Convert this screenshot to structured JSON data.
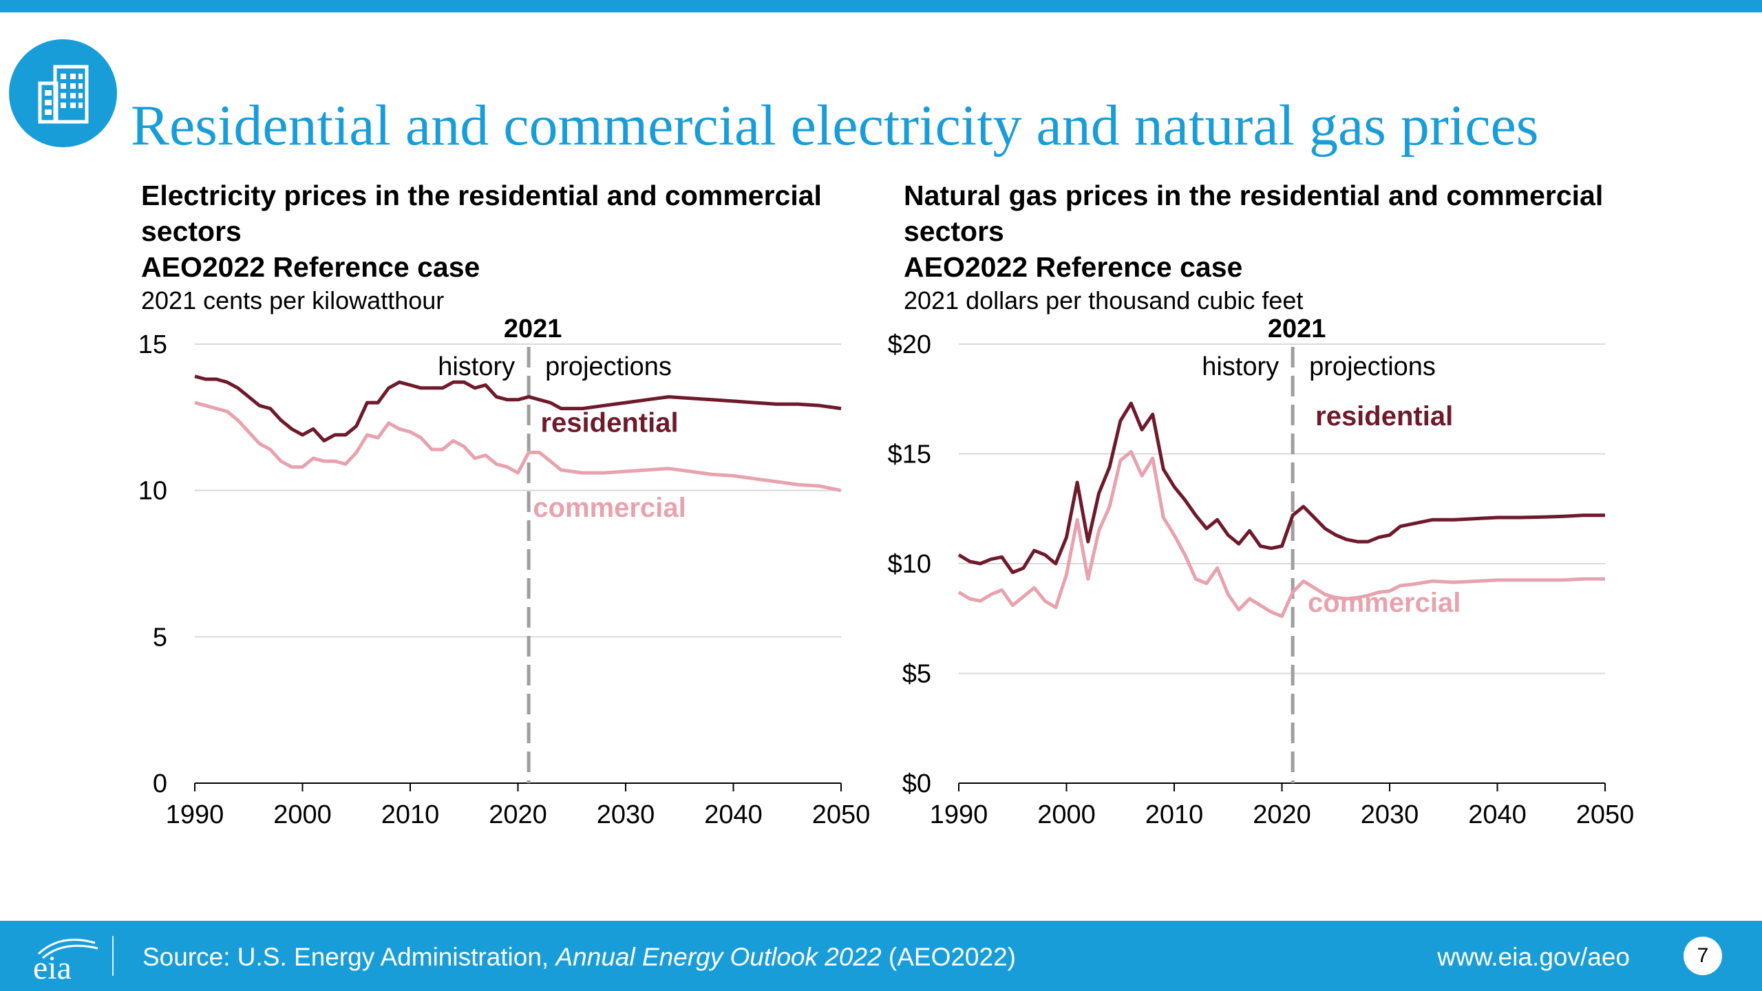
{
  "colors": {
    "accent": "#189dd9",
    "residential": "#6e1a2a",
    "commercial": "#e8a2ad",
    "divider": "#9e9e9e"
  },
  "header": {
    "icon": "office-building-icon",
    "title": "Residential and commercial electricity and natural gas prices"
  },
  "footer": {
    "logo": "eia",
    "source_prefix": "Source: U.S. Energy Administration, ",
    "source_italic": "Annual Energy Outlook 2022",
    "source_suffix": " (AEO2022)",
    "url": "www.eia.gov/aeo",
    "page_number": "7"
  },
  "chart_data": [
    {
      "type": "line",
      "title": "Electricity prices in the residential and commercial sectors",
      "subtitle": "AEO2022 Reference case",
      "ylabel": "2021 cents per kilowatthour",
      "xlim": [
        1990,
        2050
      ],
      "ylim": [
        0,
        15
      ],
      "x_ticks": [
        1990,
        2000,
        2010,
        2020,
        2030,
        2040,
        2050
      ],
      "y_ticks": [
        0,
        5,
        10,
        15
      ],
      "y_tick_labels": [
        "0",
        "5",
        "10",
        "15"
      ],
      "grid": true,
      "divider": {
        "x": 2021,
        "label": "2021",
        "left_label": "history",
        "right_label": "projections"
      },
      "series": [
        {
          "name": "residential",
          "color": "#6e1a2a",
          "x": [
            1990,
            1991,
            1992,
            1993,
            1994,
            1995,
            1996,
            1997,
            1998,
            1999,
            2000,
            2001,
            2002,
            2003,
            2004,
            2005,
            2006,
            2007,
            2008,
            2009,
            2010,
            2011,
            2012,
            2013,
            2014,
            2015,
            2016,
            2017,
            2018,
            2019,
            2020,
            2021,
            2022,
            2023,
            2024,
            2025,
            2026,
            2028,
            2030,
            2032,
            2034,
            2036,
            2038,
            2040,
            2042,
            2044,
            2046,
            2048,
            2050
          ],
          "y": [
            13.9,
            13.8,
            13.8,
            13.7,
            13.5,
            13.2,
            12.9,
            12.8,
            12.4,
            12.1,
            11.9,
            12.1,
            11.7,
            11.9,
            11.9,
            12.2,
            13.0,
            13.0,
            13.5,
            13.7,
            13.6,
            13.5,
            13.5,
            13.5,
            13.7,
            13.7,
            13.5,
            13.6,
            13.2,
            13.1,
            13.1,
            13.2,
            13.1,
            13.0,
            12.8,
            12.8,
            12.8,
            12.9,
            13.0,
            13.1,
            13.2,
            13.15,
            13.1,
            13.05,
            13.0,
            12.95,
            12.95,
            12.9,
            12.8
          ]
        },
        {
          "name": "commercial",
          "color": "#e8a2ad",
          "x": [
            1990,
            1991,
            1992,
            1993,
            1994,
            1995,
            1996,
            1997,
            1998,
            1999,
            2000,
            2001,
            2002,
            2003,
            2004,
            2005,
            2006,
            2007,
            2008,
            2009,
            2010,
            2011,
            2012,
            2013,
            2014,
            2015,
            2016,
            2017,
            2018,
            2019,
            2020,
            2021,
            2022,
            2023,
            2024,
            2025,
            2026,
            2028,
            2030,
            2032,
            2034,
            2036,
            2038,
            2040,
            2042,
            2044,
            2046,
            2048,
            2050
          ],
          "y": [
            13.0,
            12.9,
            12.8,
            12.7,
            12.4,
            12.0,
            11.6,
            11.4,
            11.0,
            10.8,
            10.8,
            11.1,
            11.0,
            11.0,
            10.9,
            11.3,
            11.9,
            11.8,
            12.3,
            12.1,
            12.0,
            11.8,
            11.4,
            11.4,
            11.7,
            11.5,
            11.1,
            11.2,
            10.9,
            10.8,
            10.6,
            11.3,
            11.3,
            11.0,
            10.7,
            10.65,
            10.6,
            10.6,
            10.65,
            10.7,
            10.75,
            10.65,
            10.55,
            10.5,
            10.4,
            10.3,
            10.2,
            10.15,
            10.0
          ]
        }
      ],
      "annotations": [
        "residential",
        "commercial"
      ]
    },
    {
      "type": "line",
      "title": "Natural gas prices in the residential and commercial sectors",
      "subtitle": "AEO2022 Reference case",
      "ylabel": "2021 dollars per thousand cubic feet",
      "xlim": [
        1990,
        2050
      ],
      "ylim": [
        0,
        20
      ],
      "x_ticks": [
        1990,
        2000,
        2010,
        2020,
        2030,
        2040,
        2050
      ],
      "y_ticks": [
        0,
        5,
        10,
        15,
        20
      ],
      "y_tick_labels": [
        "$0",
        "$5",
        "$10",
        "$15",
        "$20"
      ],
      "grid": true,
      "divider": {
        "x": 2021,
        "label": "2021",
        "left_label": "history",
        "right_label": "projections"
      },
      "series": [
        {
          "name": "residential",
          "color": "#6e1a2a",
          "x": [
            1990,
            1991,
            1992,
            1993,
            1994,
            1995,
            1996,
            1997,
            1998,
            1999,
            2000,
            2001,
            2002,
            2003,
            2004,
            2005,
            2006,
            2007,
            2008,
            2009,
            2010,
            2011,
            2012,
            2013,
            2014,
            2015,
            2016,
            2017,
            2018,
            2019,
            2020,
            2021,
            2022,
            2023,
            2024,
            2025,
            2026,
            2027,
            2028,
            2029,
            2030,
            2031,
            2032,
            2034,
            2036,
            2038,
            2040,
            2042,
            2044,
            2046,
            2048,
            2050
          ],
          "y": [
            10.4,
            10.1,
            10.0,
            10.2,
            10.3,
            9.6,
            9.8,
            10.6,
            10.4,
            10.0,
            11.2,
            13.7,
            11.0,
            13.2,
            14.4,
            16.5,
            17.3,
            16.1,
            16.8,
            14.3,
            13.5,
            12.9,
            12.2,
            11.6,
            12.0,
            11.3,
            10.9,
            11.5,
            10.8,
            10.7,
            10.8,
            12.2,
            12.6,
            12.1,
            11.6,
            11.3,
            11.1,
            11.0,
            11.0,
            11.2,
            11.3,
            11.7,
            11.8,
            12.0,
            12.0,
            12.05,
            12.1,
            12.1,
            12.12,
            12.15,
            12.2,
            12.2
          ]
        },
        {
          "name": "commercial",
          "color": "#e8a2ad",
          "x": [
            1990,
            1991,
            1992,
            1993,
            1994,
            1995,
            1996,
            1997,
            1998,
            1999,
            2000,
            2001,
            2002,
            2003,
            2004,
            2005,
            2006,
            2007,
            2008,
            2009,
            2010,
            2011,
            2012,
            2013,
            2014,
            2015,
            2016,
            2017,
            2018,
            2019,
            2020,
            2021,
            2022,
            2023,
            2024,
            2025,
            2026,
            2027,
            2028,
            2029,
            2030,
            2031,
            2032,
            2034,
            2036,
            2038,
            2040,
            2042,
            2044,
            2046,
            2048,
            2050
          ],
          "y": [
            8.7,
            8.4,
            8.3,
            8.6,
            8.8,
            8.1,
            8.5,
            8.9,
            8.3,
            8.0,
            9.5,
            12.0,
            9.3,
            11.5,
            12.6,
            14.7,
            15.1,
            14.0,
            14.8,
            12.1,
            11.3,
            10.4,
            9.3,
            9.1,
            9.8,
            8.6,
            7.9,
            8.4,
            8.1,
            7.8,
            7.6,
            8.7,
            9.2,
            8.9,
            8.6,
            8.45,
            8.4,
            8.45,
            8.55,
            8.7,
            8.75,
            9.0,
            9.05,
            9.2,
            9.15,
            9.2,
            9.25,
            9.25,
            9.25,
            9.25,
            9.3,
            9.3
          ]
        }
      ],
      "annotations": [
        "residential",
        "commercial"
      ]
    }
  ]
}
